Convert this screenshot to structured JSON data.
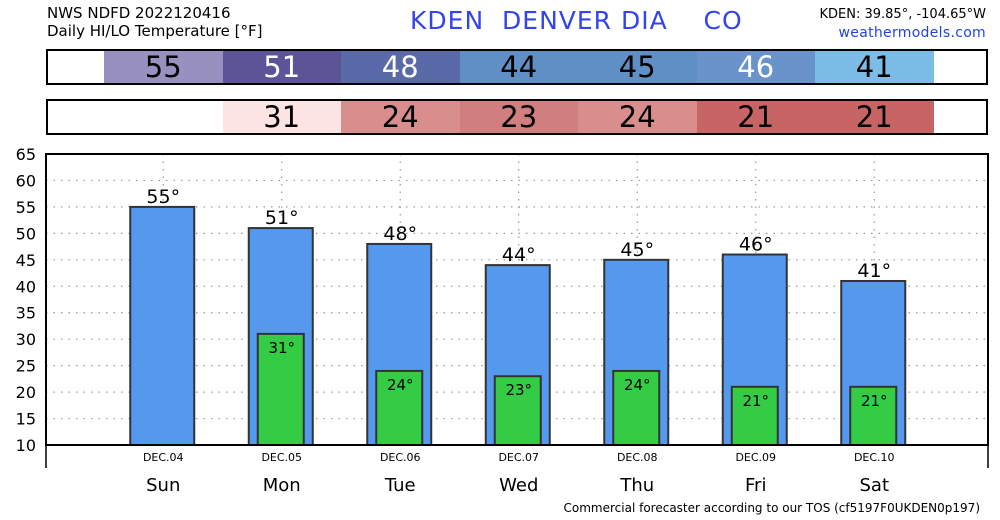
{
  "header": {
    "source_line": "NWS NDFD 2022120416",
    "product_line": "Daily HI/LO Temperature [°F]",
    "station_title": "KDEN  DENVER DIA    CO",
    "coords": "KDEN: 39.85°, -104.65°W",
    "site": "weathermodels.com"
  },
  "footer": {
    "note": "Commercial forecaster according to our TOS (cf5197F0UKDEN0p197)"
  },
  "hi_strip": [
    {
      "value": "55",
      "color": "#9891bf",
      "text_light": false
    },
    {
      "value": "51",
      "color": "#5c5496",
      "text_light": true
    },
    {
      "value": "48",
      "color": "#5a6aa8",
      "text_light": true
    },
    {
      "value": "44",
      "color": "#5f8fc4",
      "text_light": false
    },
    {
      "value": "45",
      "color": "#5f8fc4",
      "text_light": false
    },
    {
      "value": "46",
      "color": "#6a93cc",
      "text_light": true
    },
    {
      "value": "41",
      "color": "#7bbde6",
      "text_light": false
    }
  ],
  "lo_strip": [
    {
      "value": "",
      "color": "#ffffff"
    },
    {
      "value": "31",
      "color": "#fde4e4"
    },
    {
      "value": "24",
      "color": "#d98e8e"
    },
    {
      "value": "23",
      "color": "#d07e7e"
    },
    {
      "value": "24",
      "color": "#d98e8e"
    },
    {
      "value": "21",
      "color": "#c76464"
    },
    {
      "value": "21",
      "color": "#c76464"
    }
  ],
  "chart_data": {
    "type": "bar",
    "categories": [
      "DEC.04",
      "DEC.05",
      "DEC.06",
      "DEC.07",
      "DEC.08",
      "DEC.09",
      "DEC.10"
    ],
    "day_labels": [
      "Sun",
      "Mon",
      "Tue",
      "Wed",
      "Thu",
      "Fri",
      "Sat"
    ],
    "series": [
      {
        "values": [
          55,
          51,
          48,
          44,
          45,
          46,
          41
        ],
        "color": "#5599ee",
        "labels": [
          "55°",
          "51°",
          "48°",
          "44°",
          "45°",
          "46°",
          "41°"
        ]
      },
      {
        "values": [
          null,
          31,
          24,
          23,
          24,
          21,
          21
        ],
        "color": "#33cc44",
        "labels": [
          "",
          "31°",
          "24°",
          "23°",
          "24°",
          "21°",
          "21°"
        ]
      }
    ],
    "ylim": [
      10,
      65
    ],
    "yticks": [
      "10",
      "15",
      "20",
      "25",
      "30",
      "35",
      "40",
      "45",
      "50",
      "55",
      "60",
      "65"
    ],
    "grid": true
  }
}
